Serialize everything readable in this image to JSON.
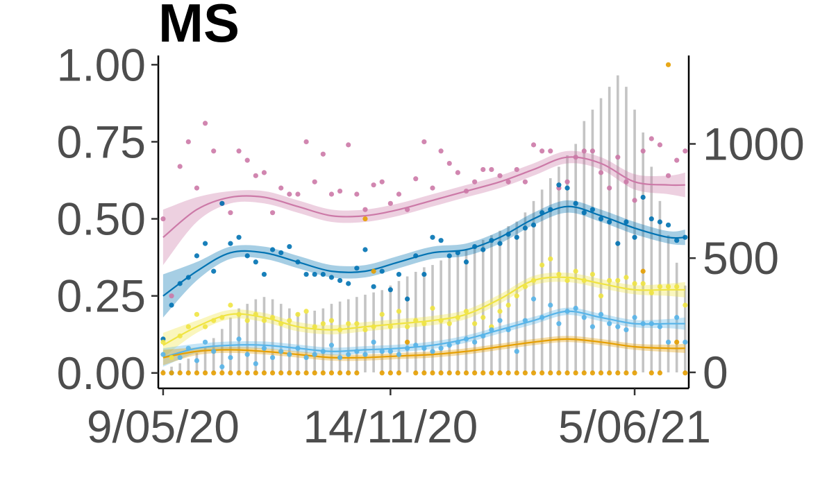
{
  "chart_data": {
    "type": "scatter",
    "title": "MS",
    "xlabel": "",
    "ylabel": "",
    "y2label": "",
    "x_axis": {
      "type": "date",
      "range": [
        "2020-05-05",
        "2021-07-20"
      ],
      "ticks": [
        {
          "value": "2020-05-09",
          "label": "9/05/20"
        },
        {
          "value": "2020-11-14",
          "label": "14/11/20"
        },
        {
          "value": "2021-06-05",
          "label": "5/06/21"
        }
      ]
    },
    "y_axis_left": {
      "range": [
        -0.05,
        1.03
      ],
      "ticks": [
        {
          "value": 0.0,
          "label": "0.00"
        },
        {
          "value": 0.25,
          "label": "0.25"
        },
        {
          "value": 0.5,
          "label": "0.50"
        },
        {
          "value": 0.75,
          "label": "0.75"
        },
        {
          "value": 1.0,
          "label": "1.00"
        }
      ]
    },
    "y_axis_right": {
      "range": [
        -70,
        1387
      ],
      "ticks": [
        {
          "value": 0,
          "label": "0"
        },
        {
          "value": 500,
          "label": "500"
        },
        {
          "value": 1000,
          "label": "1000"
        }
      ]
    },
    "grid": false,
    "legend": "none",
    "weekly_dates": [
      "2020-05-09",
      "2020-05-16",
      "2020-05-23",
      "2020-05-30",
      "2020-06-06",
      "2020-06-13",
      "2020-06-20",
      "2020-06-27",
      "2020-07-04",
      "2020-07-11",
      "2020-07-18",
      "2020-07-25",
      "2020-08-01",
      "2020-08-08",
      "2020-08-15",
      "2020-08-22",
      "2020-08-29",
      "2020-09-05",
      "2020-09-12",
      "2020-09-19",
      "2020-09-26",
      "2020-10-03",
      "2020-10-10",
      "2020-10-17",
      "2020-10-24",
      "2020-10-31",
      "2020-11-07",
      "2020-11-14",
      "2020-11-21",
      "2020-11-28",
      "2020-12-05",
      "2020-12-12",
      "2020-12-19",
      "2020-12-26",
      "2021-01-02",
      "2021-01-09",
      "2021-01-16",
      "2021-01-23",
      "2021-01-30",
      "2021-02-06",
      "2021-02-13",
      "2021-02-20",
      "2021-02-27",
      "2021-03-06",
      "2021-03-13",
      "2021-03-20",
      "2021-03-27",
      "2021-04-03",
      "2021-04-10",
      "2021-04-17",
      "2021-04-24",
      "2021-05-01",
      "2021-05-08",
      "2021-05-15",
      "2021-05-22",
      "2021-05-29",
      "2021-06-05",
      "2021-06-12",
      "2021-06-19",
      "2021-06-26",
      "2021-07-03",
      "2021-07-10",
      "2021-07-17"
    ],
    "count_series": {
      "axis": "right",
      "color": "#bebebe",
      "values": [
        12,
        25,
        40,
        60,
        85,
        110,
        150,
        190,
        240,
        280,
        300,
        320,
        330,
        320,
        300,
        280,
        260,
        260,
        270,
        280,
        300,
        310,
        320,
        330,
        340,
        350,
        360,
        380,
        400,
        420,
        440,
        460,
        470,
        490,
        500,
        520,
        540,
        560,
        580,
        600,
        620,
        640,
        660,
        700,
        750,
        800,
        850,
        900,
        950,
        1000,
        1100,
        1150,
        1200,
        1250,
        1300,
        1250,
        1150,
        1050,
        900,
        750,
        600,
        480,
        380
      ]
    },
    "series": [
      {
        "color": "#cc79a7",
        "points": [
          0.5,
          0.25,
          0.67,
          0.75,
          0.6,
          0.81,
          0.72,
          0.55,
          0.52,
          0.72,
          0.69,
          0.64,
          0.65,
          0.52,
          0.6,
          0.58,
          0.58,
          0.75,
          0.62,
          0.71,
          0.58,
          0.59,
          0.74,
          0.58,
          0.53,
          0.61,
          0.62,
          0.55,
          0.58,
          0.53,
          0.63,
          0.75,
          0.6,
          0.72,
          0.68,
          0.65,
          0.59,
          0.62,
          0.66,
          0.66,
          0.64,
          0.62,
          0.66,
          0.62,
          0.74,
          0.72,
          0.72,
          0.6,
          0.62,
          0.7,
          0.72,
          0.72,
          0.65,
          0.6,
          0.7,
          0.62,
          0.56,
          0.72,
          0.76,
          0.74,
          0.64,
          0.69,
          0.72
        ],
        "smooth_x": [
          "2020-05-09",
          "2020-06-06",
          "2020-07-04",
          "2020-08-01",
          "2020-08-29",
          "2020-09-26",
          "2020-10-24",
          "2020-11-21",
          "2020-12-19",
          "2021-01-16",
          "2021-02-13",
          "2021-03-13",
          "2021-04-10",
          "2021-05-08",
          "2021-06-05",
          "2021-07-03",
          "2021-07-17"
        ],
        "smooth_y": [
          0.44,
          0.53,
          0.57,
          0.57,
          0.54,
          0.51,
          0.51,
          0.53,
          0.56,
          0.59,
          0.62,
          0.66,
          0.7,
          0.68,
          0.62,
          0.61,
          0.61
        ],
        "band_half": [
          0.09,
          0.04,
          0.02,
          0.02,
          0.02,
          0.02,
          0.02,
          0.02,
          0.02,
          0.02,
          0.02,
          0.02,
          0.02,
          0.02,
          0.025,
          0.03,
          0.04
        ]
      },
      {
        "color": "#0072b2",
        "points": [
          0.11,
          0.22,
          0.29,
          0.31,
          0.38,
          0.42,
          0.33,
          0.55,
          0.42,
          0.44,
          0.38,
          0.36,
          0.32,
          0.4,
          0.39,
          0.41,
          0.36,
          0.32,
          0.32,
          0.32,
          0.31,
          0.3,
          0.29,
          0.34,
          0.4,
          0.28,
          0.33,
          0.27,
          0.32,
          0.24,
          0.38,
          0.32,
          0.44,
          0.43,
          0.38,
          0.39,
          0.36,
          0.41,
          0.4,
          0.43,
          0.42,
          0.45,
          0.44,
          0.47,
          0.48,
          0.52,
          0.53,
          0.61,
          0.6,
          0.55,
          0.52,
          0.53,
          0.5,
          0.49,
          0.42,
          0.49,
          0.44,
          0.57,
          0.5,
          0.49,
          0.48,
          0.43,
          0.44
        ],
        "smooth_x": [
          "2020-05-09",
          "2020-06-06",
          "2020-07-04",
          "2020-08-01",
          "2020-08-29",
          "2020-09-26",
          "2020-10-24",
          "2020-11-21",
          "2020-12-19",
          "2021-01-16",
          "2021-02-13",
          "2021-03-13",
          "2021-04-10",
          "2021-05-08",
          "2021-06-05",
          "2021-07-03",
          "2021-07-17"
        ],
        "smooth_y": [
          0.25,
          0.33,
          0.39,
          0.39,
          0.36,
          0.33,
          0.33,
          0.36,
          0.39,
          0.4,
          0.44,
          0.5,
          0.54,
          0.51,
          0.47,
          0.44,
          0.44
        ],
        "band_half": [
          0.07,
          0.03,
          0.02,
          0.02,
          0.02,
          0.02,
          0.02,
          0.02,
          0.02,
          0.02,
          0.02,
          0.02,
          0.02,
          0.02,
          0.02,
          0.02,
          0.025
        ]
      },
      {
        "color": "#f0e442",
        "points": [
          0.1,
          0.05,
          0.12,
          0.15,
          0.19,
          0.15,
          0.17,
          0.18,
          0.22,
          0.19,
          0.17,
          0.19,
          0.17,
          0.18,
          0.16,
          0.17,
          0.19,
          0.2,
          0.15,
          0.16,
          0.17,
          0.14,
          0.16,
          0.16,
          0.14,
          0.15,
          0.19,
          0.15,
          0.2,
          0.15,
          0.17,
          0.16,
          0.21,
          0.17,
          0.16,
          0.18,
          0.2,
          0.16,
          0.18,
          0.15,
          0.2,
          0.22,
          0.25,
          0.28,
          0.3,
          0.35,
          0.37,
          0.32,
          0.3,
          0.33,
          0.3,
          0.32,
          0.25,
          0.3,
          0.3,
          0.31,
          0.29,
          0.29,
          0.26,
          0.28,
          0.28,
          0.28,
          0.22
        ],
        "smooth_x": [
          "2020-05-09",
          "2020-06-06",
          "2020-07-04",
          "2020-08-01",
          "2020-08-29",
          "2020-09-26",
          "2020-10-24",
          "2020-11-21",
          "2020-12-19",
          "2021-01-16",
          "2021-02-13",
          "2021-03-13",
          "2021-04-10",
          "2021-05-08",
          "2021-06-05",
          "2021-07-03",
          "2021-07-17"
        ],
        "smooth_y": [
          0.09,
          0.15,
          0.19,
          0.18,
          0.15,
          0.14,
          0.15,
          0.16,
          0.17,
          0.19,
          0.24,
          0.3,
          0.31,
          0.29,
          0.27,
          0.27,
          0.27
        ],
        "band_half": [
          0.04,
          0.02,
          0.015,
          0.015,
          0.015,
          0.015,
          0.015,
          0.015,
          0.015,
          0.015,
          0.015,
          0.015,
          0.015,
          0.015,
          0.015,
          0.02,
          0.025
        ]
      },
      {
        "color": "#56b4e9",
        "points": [
          0.06,
          0.0,
          0.05,
          0.08,
          0.04,
          0.1,
          0.07,
          0.02,
          0.05,
          0.11,
          0.06,
          0.03,
          0.08,
          0.05,
          0.07,
          0.06,
          0.08,
          0.05,
          0.06,
          0.07,
          0.09,
          0.05,
          0.06,
          0.07,
          0.06,
          0.1,
          0.07,
          0.07,
          0.06,
          0.08,
          0.09,
          0.08,
          0.07,
          0.08,
          0.09,
          0.1,
          0.11,
          0.1,
          0.12,
          0.14,
          0.17,
          0.14,
          0.07,
          0.17,
          0.24,
          0.18,
          0.22,
          0.16,
          0.2,
          0.21,
          0.18,
          0.15,
          0.19,
          0.16,
          0.15,
          0.14,
          0.18,
          0.16,
          0.16,
          0.15,
          0.1,
          0.18,
          0.1
        ],
        "smooth_x": [
          "2020-05-09",
          "2020-06-06",
          "2020-07-04",
          "2020-08-01",
          "2020-08-29",
          "2020-09-26",
          "2020-10-24",
          "2020-11-21",
          "2020-12-19",
          "2021-01-16",
          "2021-02-13",
          "2021-03-13",
          "2021-04-10",
          "2021-05-08",
          "2021-06-05",
          "2021-07-03",
          "2021-07-17"
        ],
        "smooth_y": [
          0.05,
          0.08,
          0.09,
          0.09,
          0.08,
          0.07,
          0.075,
          0.08,
          0.09,
          0.11,
          0.14,
          0.17,
          0.2,
          0.18,
          0.16,
          0.16,
          0.16
        ],
        "band_half": [
          0.03,
          0.015,
          0.012,
          0.012,
          0.012,
          0.012,
          0.012,
          0.012,
          0.012,
          0.012,
          0.012,
          0.012,
          0.012,
          0.012,
          0.012,
          0.015,
          0.02
        ]
      },
      {
        "color": "#e69f00",
        "points": [
          0.0,
          0.0,
          0.0,
          0.0,
          0.0,
          0.0,
          0.0,
          0.0,
          0.0,
          0.0,
          0.0,
          0.0,
          0.0,
          0.0,
          0.0,
          0.0,
          0.0,
          0.0,
          0.0,
          0.0,
          0.0,
          0.0,
          0.0,
          0.0,
          0.5,
          0.33,
          0.0,
          0.0,
          0.0,
          0.1,
          0.0,
          0.0,
          0.0,
          0.0,
          0.0,
          0.0,
          0.0,
          0.0,
          0.0,
          0.0,
          0.0,
          0.0,
          0.0,
          0.0,
          0.0,
          0.0,
          0.0,
          0.0,
          0.0,
          0.0,
          0.0,
          0.0,
          0.0,
          0.0,
          0.0,
          0.0,
          0.0,
          0.33,
          0.0,
          0.0,
          1.0,
          0.1,
          0.0
        ],
        "smooth_x": [
          "2020-05-09",
          "2020-06-06",
          "2020-07-04",
          "2020-08-01",
          "2020-08-29",
          "2020-09-26",
          "2020-10-24",
          "2020-11-21",
          "2020-12-19",
          "2021-01-16",
          "2021-02-13",
          "2021-03-13",
          "2021-04-10",
          "2021-05-08",
          "2021-06-05",
          "2021-07-03",
          "2021-07-17"
        ],
        "smooth_y": [
          0.05,
          0.07,
          0.075,
          0.07,
          0.06,
          0.05,
          0.05,
          0.055,
          0.06,
          0.07,
          0.085,
          0.1,
          0.11,
          0.1,
          0.085,
          0.08,
          0.08
        ],
        "band_half": [
          0.025,
          0.012,
          0.01,
          0.01,
          0.01,
          0.01,
          0.01,
          0.01,
          0.01,
          0.01,
          0.01,
          0.01,
          0.01,
          0.01,
          0.01,
          0.012,
          0.015
        ]
      }
    ]
  }
}
